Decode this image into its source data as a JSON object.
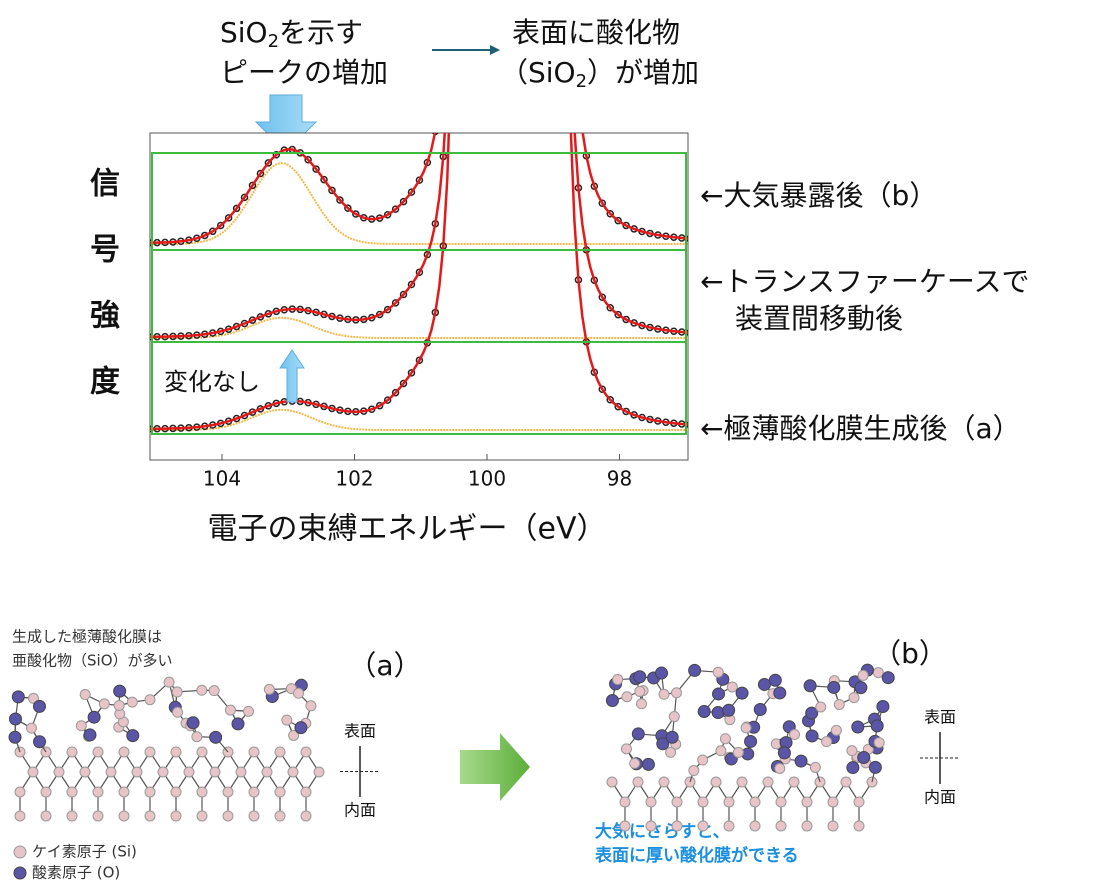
{
  "header": {
    "left": {
      "line1": {
        "pre": "SiO",
        "sub": "2",
        "post": "を示す"
      },
      "line2": "ピークの増加"
    },
    "right": {
      "line1": "表面に酸化物",
      "line2": {
        "pre": "（SiO",
        "sub": "2",
        "post": "）が増加"
      }
    }
  },
  "y_label": [
    "信",
    "号",
    "強",
    "度"
  ],
  "no_change": "変化なし",
  "trace_labels": [
    [
      "←大気暴露後（b）"
    ],
    [
      "←トランスファーケースで",
      "装置間移動後"
    ],
    [
      "←極薄酸化膜生成後（a）"
    ]
  ],
  "x_axis": {
    "ticks": [
      "104",
      "102",
      "100",
      "98"
    ],
    "title": "電子の束縛エネルギー（eV）"
  },
  "diagram_a": {
    "note": [
      "生成した極薄酸化膜は",
      "亜酸化物（SiO）が多い"
    ],
    "label": "（a）",
    "surface": "表面",
    "interior": "内面",
    "legend": [
      "ケイ素原子 (Si)",
      "酸素原子 (O)"
    ]
  },
  "diagram_b": {
    "label": "（b）",
    "surface": "表面",
    "interior": "内面",
    "caption": [
      "大気にさらすと、",
      "表面に厚い酸化膜ができる"
    ]
  }
}
